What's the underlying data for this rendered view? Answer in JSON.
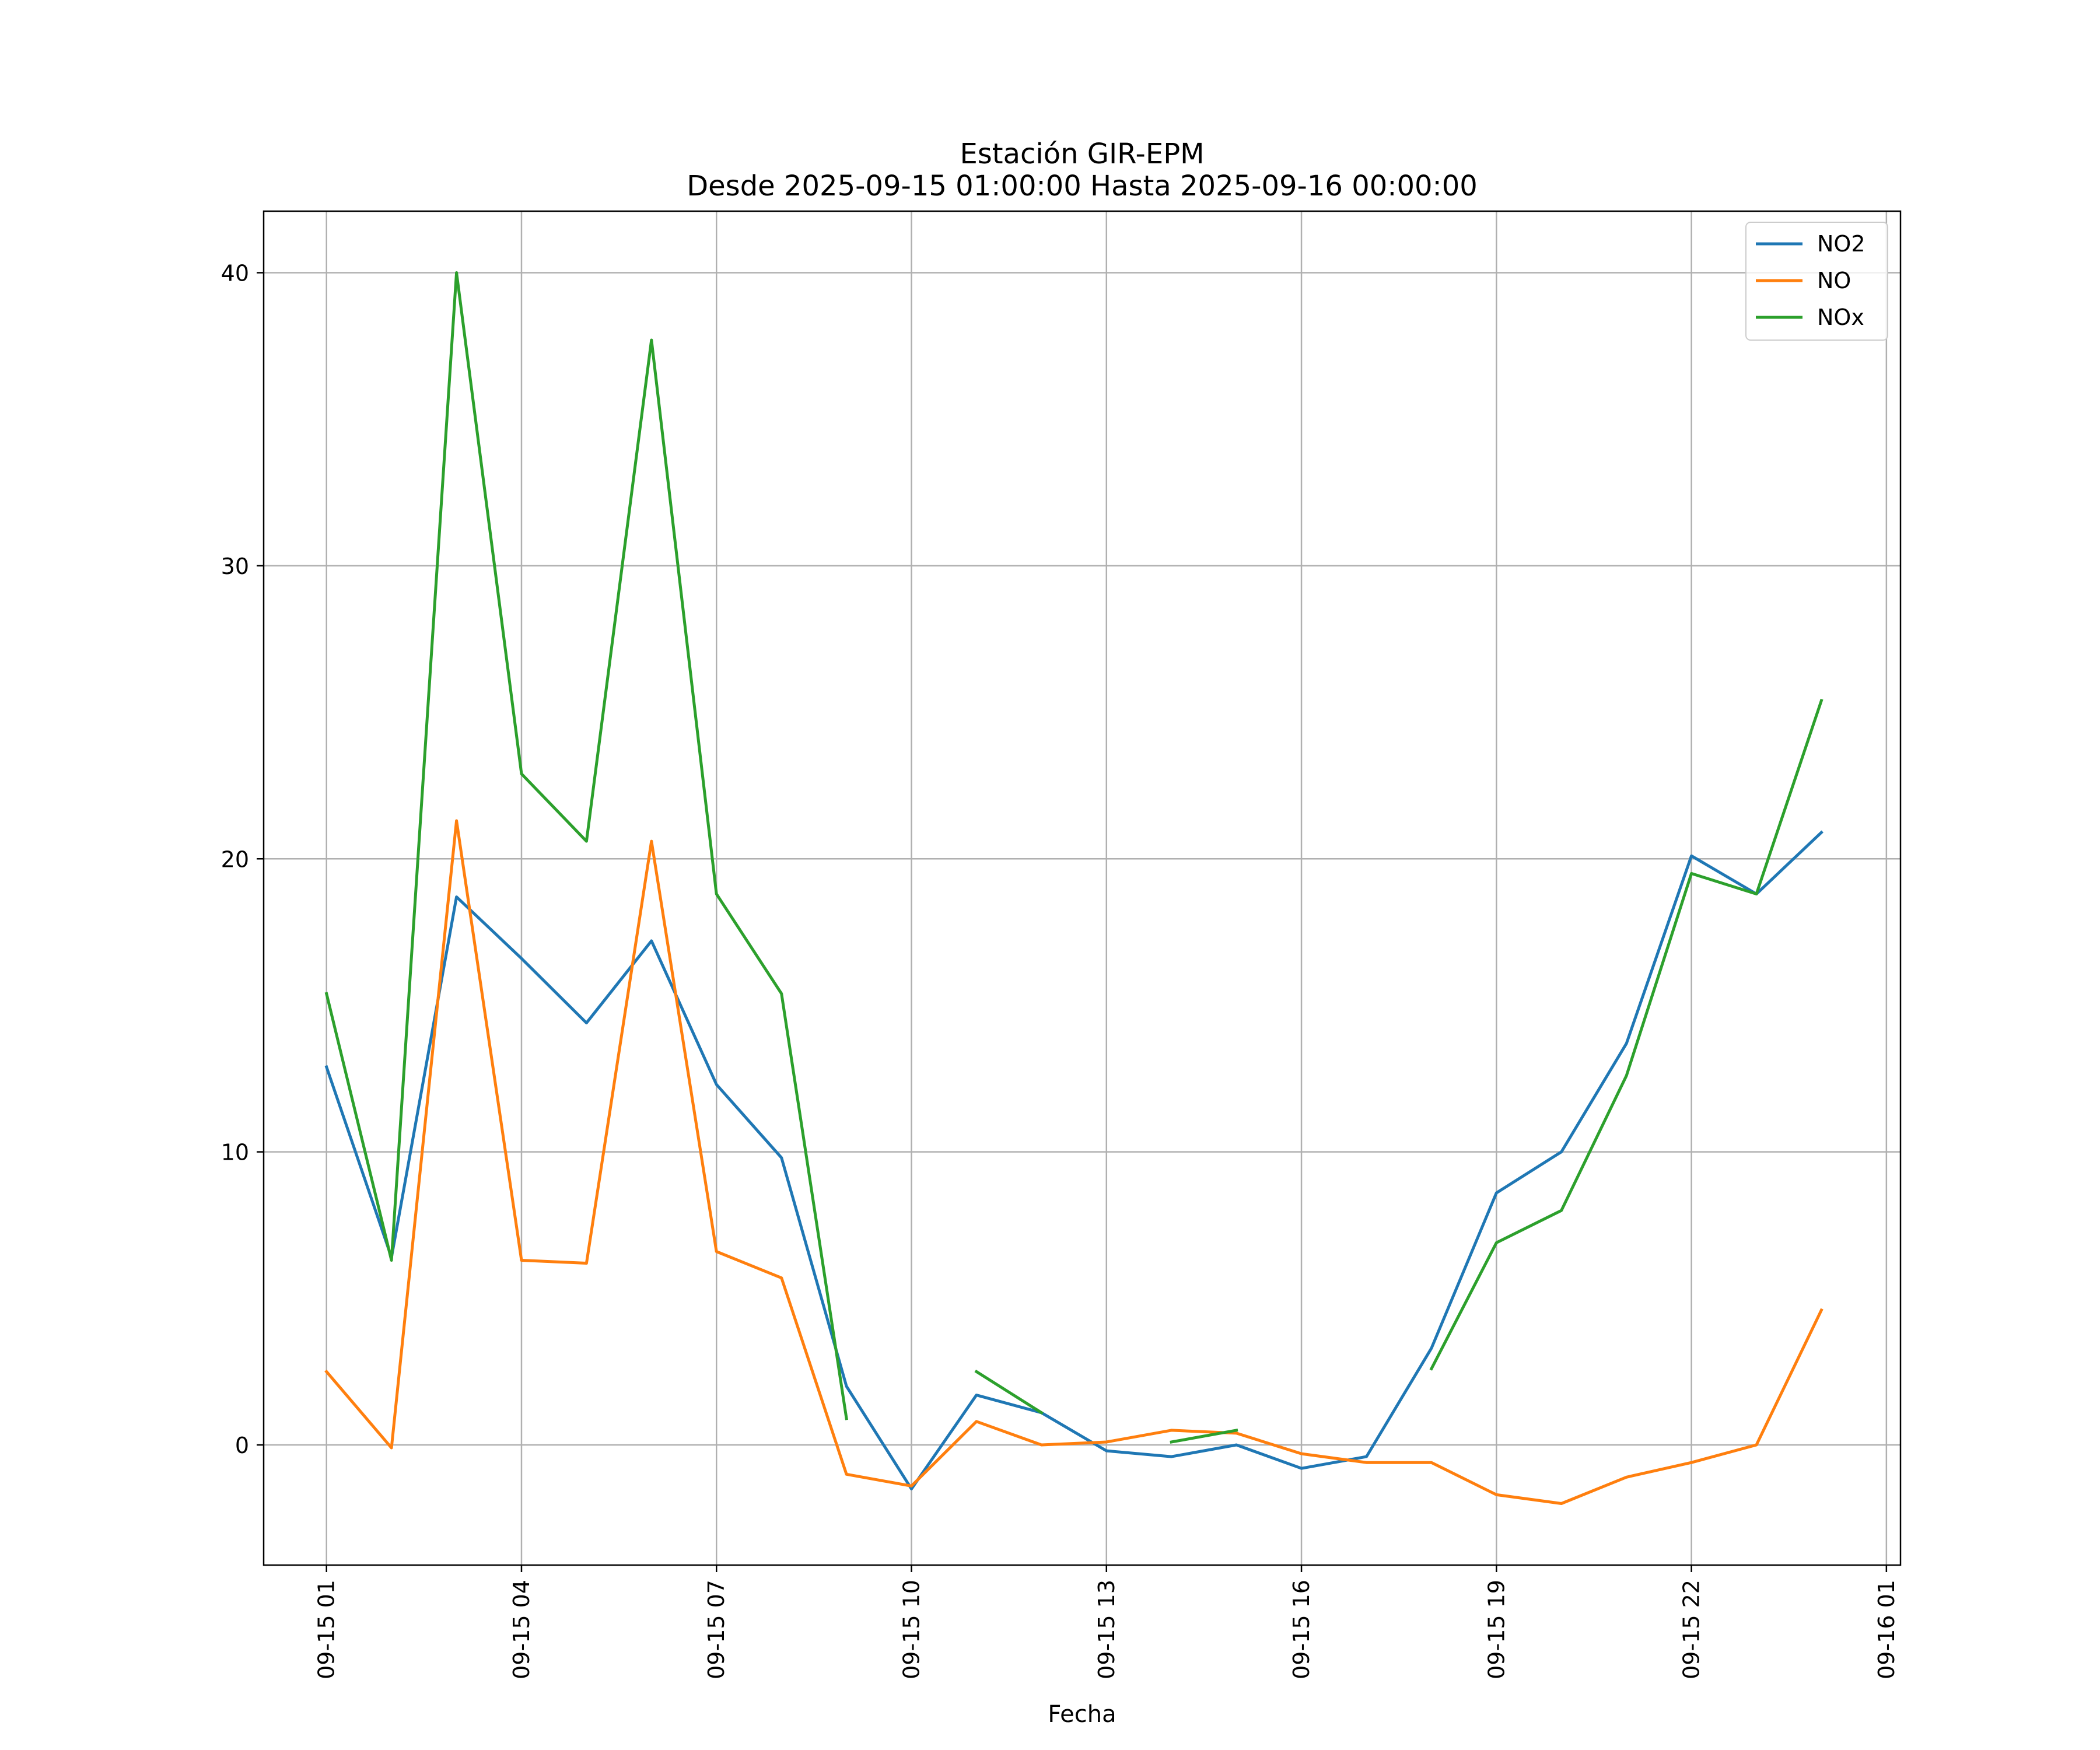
{
  "chart_data": {
    "type": "line",
    "title": "Estación GIR-EPM",
    "subtitle": "Desde 2025-09-15 01:00:00 Hasta 2025-09-16 00:00:00",
    "xlabel": "Fecha",
    "ylabel": "",
    "x": [
      "2025-09-15 01:00",
      "2025-09-15 02:00",
      "2025-09-15 03:00",
      "2025-09-15 04:00",
      "2025-09-15 05:00",
      "2025-09-15 06:00",
      "2025-09-15 07:00",
      "2025-09-15 08:00",
      "2025-09-15 09:00",
      "2025-09-15 10:00",
      "2025-09-15 11:00",
      "2025-09-15 12:00",
      "2025-09-15 13:00",
      "2025-09-15 14:00",
      "2025-09-15 15:00",
      "2025-09-15 16:00",
      "2025-09-15 17:00",
      "2025-09-15 18:00",
      "2025-09-15 19:00",
      "2025-09-15 20:00",
      "2025-09-15 21:00",
      "2025-09-15 22:00",
      "2025-09-15 23:00",
      "2025-09-16 00:00"
    ],
    "xlim": [
      "2025-09-15 00:02",
      "2025-09-16 01:13"
    ],
    "ylim": [
      -4.1,
      42.1
    ],
    "x_ticks": [
      "09-15 01",
      "09-15 04",
      "09-15 07",
      "09-15 10",
      "09-15 13",
      "09-15 16",
      "09-15 19",
      "09-15 22",
      "09-16 01"
    ],
    "y_ticks": [
      "0",
      "10",
      "20",
      "30",
      "40"
    ],
    "grid": true,
    "legend_position": "top-right",
    "series": [
      {
        "name": "NO2",
        "color": "#1f77b4",
        "values": [
          12.9,
          6.4,
          18.7,
          16.6,
          14.4,
          17.2,
          12.3,
          9.8,
          2.0,
          -1.5,
          1.7,
          1.1,
          -0.2,
          -0.4,
          0.0,
          -0.8,
          -0.4,
          3.3,
          8.6,
          10.0,
          13.7,
          20.1,
          18.8,
          20.9
        ]
      },
      {
        "name": "NO",
        "color": "#ff7f0e",
        "values": [
          2.5,
          -0.1,
          21.3,
          6.3,
          6.2,
          20.6,
          6.6,
          5.7,
          -1.0,
          -1.4,
          0.8,
          0.0,
          0.1,
          0.5,
          0.4,
          -0.3,
          -0.6,
          -0.6,
          -1.7,
          -2.0,
          -1.1,
          -0.6,
          0.0,
          4.6
        ]
      },
      {
        "name": "NOx",
        "color": "#2ca02c",
        "values": [
          15.4,
          6.3,
          40.0,
          22.9,
          20.6,
          37.7,
          18.8,
          15.4,
          0.9,
          null,
          2.5,
          1.1,
          null,
          0.1,
          0.5,
          null,
          null,
          2.6,
          6.9,
          8.0,
          12.6,
          19.5,
          18.8,
          25.4
        ]
      }
    ]
  }
}
